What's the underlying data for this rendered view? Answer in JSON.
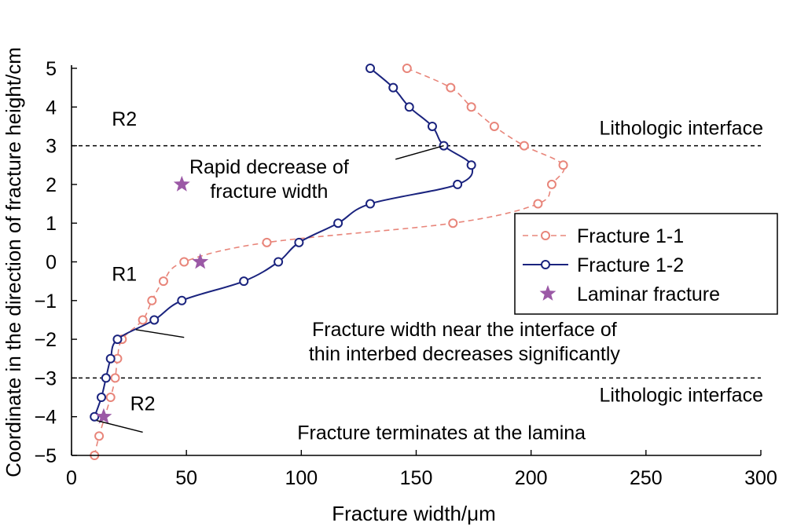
{
  "chart_data": {
    "type": "line",
    "xlabel": "Fracture width/μm",
    "ylabel": "Coordinate in the direction of fracture height/cm",
    "xlim": [
      0,
      300
    ],
    "ylim": [
      -5,
      5
    ],
    "xticks": [
      0,
      50,
      100,
      150,
      200,
      250,
      300
    ],
    "yticks": [
      -5,
      -4,
      -3,
      -2,
      -1,
      0,
      1,
      2,
      3,
      4,
      5
    ],
    "grid": false,
    "legend": "right",
    "series": [
      {
        "name": "Fracture 1-1",
        "color": "#e8857a",
        "style": "dashed",
        "marker": "circle",
        "x": [
          10,
          12,
          17,
          19,
          20,
          22,
          31,
          35,
          40,
          49,
          85,
          166,
          203,
          209,
          214,
          197,
          184,
          174,
          165,
          146
        ],
        "y": [
          -5,
          -4.5,
          -3.5,
          -3,
          -2.5,
          -2,
          -1.5,
          -1,
          -0.5,
          0,
          0.5,
          1,
          1.5,
          2,
          2.5,
          3,
          3.5,
          4,
          4.5,
          5
        ]
      },
      {
        "name": "Fracture 1-2",
        "color": "#1a237e",
        "style": "solid",
        "marker": "circle",
        "x": [
          10,
          13,
          15,
          17,
          20,
          36,
          48,
          75,
          90,
          99,
          116,
          130,
          168,
          174,
          162,
          157,
          147,
          140,
          130
        ],
        "y": [
          -4,
          -3.5,
          -3,
          -2.5,
          -2,
          -1.5,
          -1,
          -0.5,
          0,
          0.5,
          1,
          1.5,
          2,
          2.5,
          3,
          3.5,
          4,
          4.5,
          5
        ]
      },
      {
        "name": "Laminar fracture",
        "color": "#9b59a6",
        "marker": "star",
        "x": [
          56,
          48,
          14
        ],
        "y": [
          0,
          2,
          -4
        ]
      }
    ],
    "reference_lines": [
      {
        "y": 3,
        "label": "Lithologic interface"
      },
      {
        "y": -3,
        "label": "Lithologic interface"
      }
    ],
    "region_labels": [
      {
        "text": "R2",
        "x": 23,
        "y": 3.7
      },
      {
        "text": "R1",
        "x": 23,
        "y": -0.3
      },
      {
        "text": "R2",
        "x": 31,
        "y": -3.65
      }
    ],
    "annotations": [
      {
        "lines": [
          "Rapid decrease of",
          "fracture width"
        ],
        "text_x": 86,
        "text_y": 2.15,
        "target_x": 162,
        "target_y": 3
      },
      {
        "lines": [
          "Fracture width near the interface of",
          "thin interbed decreases significantly"
        ],
        "text_x": 171,
        "text_y": -2.05,
        "target_x": 28,
        "target_y": -1.75
      },
      {
        "lines": [
          "Fracture terminates at the lamina"
        ],
        "text_x": 161,
        "text_y": -4.4,
        "target_x": 11,
        "target_y": -4.1
      }
    ]
  }
}
